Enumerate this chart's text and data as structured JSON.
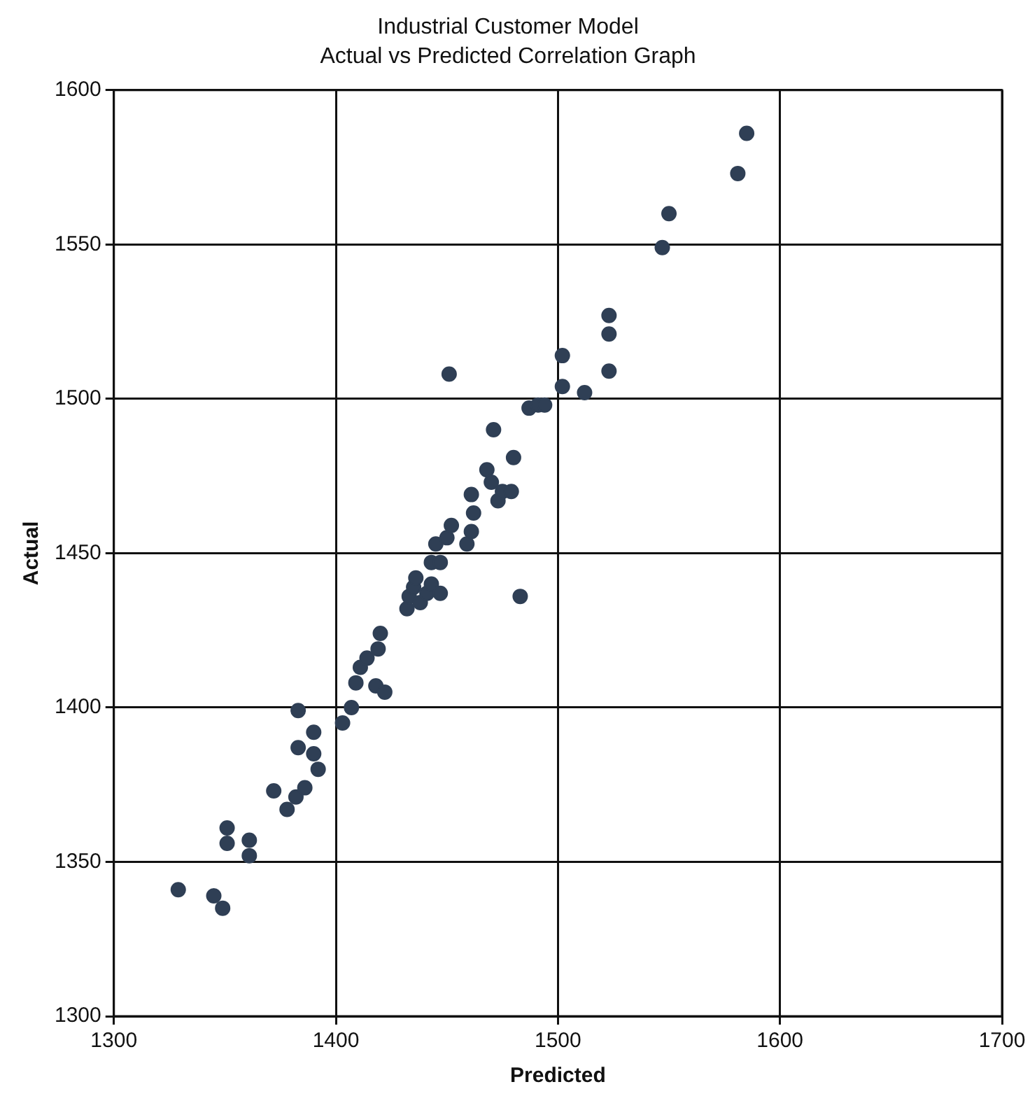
{
  "chart_data": {
    "type": "scatter",
    "title": "Industrial Customer Model",
    "subtitle": "Actual vs Predicted Correlation Graph",
    "xlabel": "Predicted",
    "ylabel": "Actual",
    "xlim": [
      1300,
      1700
    ],
    "xticks": [
      1300,
      1400,
      1500,
      1600,
      1700
    ],
    "ylim": [
      1300,
      1600
    ],
    "yticks": [
      1300,
      1350,
      1400,
      1450,
      1500,
      1550,
      1600
    ],
    "grid": true,
    "marker": "circle",
    "series": [
      {
        "color": "#2f3f55",
        "x": [
          1329,
          1345,
          1349,
          1351,
          1351,
          1361,
          1361,
          1372,
          1378,
          1382,
          1386,
          1383,
          1390,
          1390,
          1392,
          1383,
          1403,
          1407,
          1409,
          1411,
          1414,
          1418,
          1419,
          1420,
          1422,
          1432,
          1433,
          1435,
          1436,
          1438,
          1441,
          1443,
          1443,
          1445,
          1447,
          1447,
          1450,
          1452,
          1451,
          1459,
          1461,
          1462,
          1461,
          1468,
          1470,
          1473,
          1475,
          1471,
          1479,
          1480,
          1483,
          1487,
          1491,
          1494,
          1502,
          1502,
          1512,
          1523,
          1523,
          1523,
          1547,
          1550,
          1581,
          1585
        ],
        "values": [
          1341,
          1339,
          1335,
          1361,
          1356,
          1357,
          1352,
          1373,
          1367,
          1371,
          1374,
          1387,
          1392,
          1385,
          1380,
          1399,
          1395,
          1400,
          1408,
          1413,
          1416,
          1407,
          1419,
          1424,
          1405,
          1432,
          1436,
          1439,
          1442,
          1434,
          1437,
          1440,
          1447,
          1453,
          1447,
          1437,
          1455,
          1459,
          1508,
          1453,
          1457,
          1463,
          1469,
          1477,
          1473,
          1467,
          1470,
          1490,
          1470,
          1481,
          1436,
          1497,
          1498,
          1498,
          1504,
          1514,
          1502,
          1509,
          1521,
          1527,
          1549,
          1560,
          1573,
          1586
        ]
      }
    ]
  }
}
